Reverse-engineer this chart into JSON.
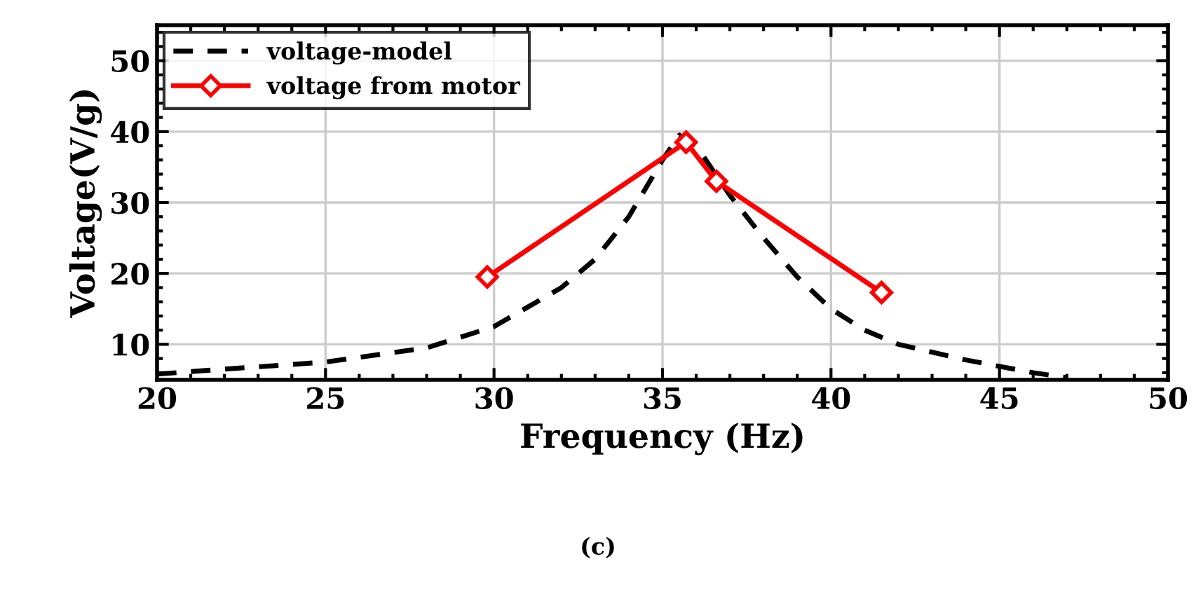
{
  "chart_data": {
    "type": "line",
    "xlabel": "Frequency (Hz)",
    "ylabel": "Voltage(V/g)",
    "annotations": [
      "(c)"
    ],
    "xlim": [
      20,
      50
    ],
    "xticks": [
      20,
      25,
      30,
      35,
      40,
      45,
      50
    ],
    "ylim": [
      5,
      55
    ],
    "yticks": [
      10,
      20,
      30,
      40,
      50
    ],
    "grid": true,
    "legend": "top left",
    "series": [
      {
        "name": "voltage-model",
        "color": "#000000",
        "line_style": "dashed",
        "marker": "none",
        "x": [
          20,
          22,
          25,
          28,
          30,
          32,
          33,
          34,
          35,
          35.5,
          36,
          37,
          38,
          39,
          40,
          41,
          42,
          44,
          46,
          47
        ],
        "values": [
          5.8,
          6.5,
          7.5,
          9.5,
          12.5,
          18,
          22,
          28,
          36,
          39.5,
          38,
          31,
          25,
          19.5,
          15,
          12,
          10,
          7.8,
          6,
          5.3
        ]
      },
      {
        "name": "voltage from motor",
        "color": "#ff0000",
        "line_style": "solid",
        "marker": "diamond",
        "x": [
          29.8,
          35.7,
          36.6,
          41.5
        ],
        "values": [
          19.5,
          38.5,
          33,
          17.3
        ]
      }
    ]
  }
}
